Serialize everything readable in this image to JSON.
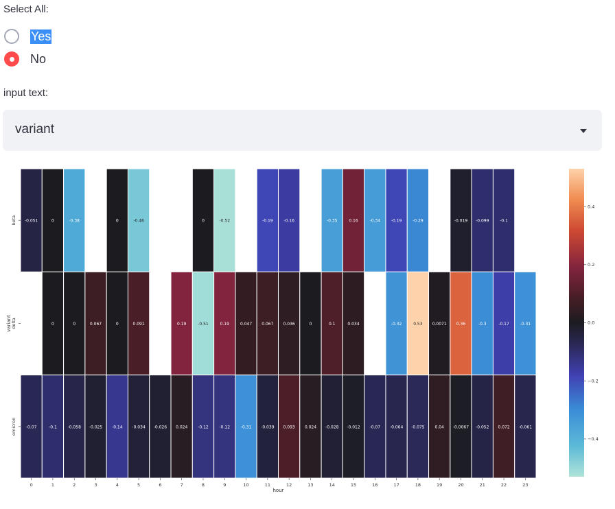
{
  "radio": {
    "label": "Select All:",
    "options": [
      "Yes",
      "No"
    ],
    "selected": "No"
  },
  "select": {
    "label": "input text:",
    "value": "variant"
  },
  "chart_data": {
    "type": "heatmap",
    "xlabel": "hour",
    "ylabel": "variant",
    "columns": [
      "0",
      "1",
      "2",
      "3",
      "4",
      "5",
      "6",
      "7",
      "8",
      "9",
      "10",
      "11",
      "12",
      "13",
      "14",
      "15",
      "16",
      "17",
      "18",
      "19",
      "20",
      "21",
      "22",
      "23"
    ],
    "rows": [
      "beta",
      "delta",
      "omicron"
    ],
    "values": [
      [
        -0.051,
        0,
        -0.38,
        null,
        0,
        -0.46,
        null,
        null,
        0,
        -0.52,
        null,
        -0.19,
        -0.16,
        null,
        -0.35,
        0.16,
        -0.34,
        -0.19,
        -0.29,
        null,
        -0.019,
        -0.099,
        -0.1,
        null
      ],
      [
        null,
        0,
        0,
        0.067,
        0,
        0.091,
        null,
        0.19,
        -0.51,
        0.19,
        0.047,
        0.067,
        0.036,
        0,
        0.1,
        0.034,
        null,
        -0.32,
        0.53,
        0.0071,
        0.36,
        -0.3,
        -0.17,
        -0.31
      ],
      [
        -0.07,
        -0.1,
        -0.058,
        -0.025,
        -0.14,
        -0.034,
        -0.026,
        0.024,
        -0.12,
        -0.12,
        -0.31,
        -0.039,
        0.093,
        0.024,
        -0.028,
        -0.012,
        -0.07,
        -0.064,
        -0.075,
        0.04,
        -0.0067,
        -0.052,
        0.072,
        -0.061
      ]
    ],
    "labels": [
      [
        "-0.051",
        "0",
        "-0.38",
        "",
        "0",
        "-0.46",
        "",
        "",
        "0",
        "-0.52",
        "",
        "-0.19",
        "-0.16",
        "",
        "-0.35",
        "0.16",
        "-0.34",
        "-0.19",
        "-0.29",
        "",
        "-0.019",
        "-0.099",
        "-0.1",
        ""
      ],
      [
        "",
        "0",
        "0",
        "0.067",
        "0",
        "0.091",
        "",
        "0.19",
        "-0.51",
        "0.19",
        "0.047",
        "0.067",
        "0.036",
        "0",
        "0.1",
        "0.034",
        "",
        "-0.32",
        "0.53",
        "0.0071",
        "0.36",
        "-0.3",
        "-0.17",
        "-0.31"
      ],
      [
        "-0.07",
        "-0.1",
        "-0.058",
        "-0.025",
        "-0.14",
        "-0.034",
        "-0.026",
        "0.024",
        "-0.12",
        "-0.12",
        "-0.31",
        "-0.039",
        "0.093",
        "0.024",
        "-0.028",
        "-0.012",
        "-0.07",
        "-0.064",
        "-0.075",
        "0.04",
        "-0.0067",
        "-0.052",
        "0.072",
        "-0.061"
      ]
    ],
    "colorbar": {
      "min": -0.53,
      "max": 0.53,
      "ticks": [
        0.4,
        0.2,
        0.0,
        -0.2,
        -0.4
      ],
      "tick_labels": [
        "0.4",
        "0.2",
        "0.0",
        "−0.2",
        "−0.4"
      ]
    },
    "colormap": "icefire"
  }
}
